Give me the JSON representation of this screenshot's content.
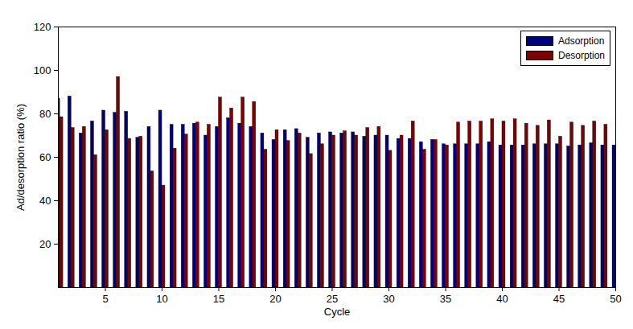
{
  "chart_data": {
    "type": "bar",
    "x_label": "Cycle",
    "y_label": "Ad/desorption ratio (%)",
    "x": [
      1,
      2,
      3,
      4,
      5,
      6,
      7,
      8,
      9,
      10,
      11,
      12,
      13,
      14,
      15,
      16,
      17,
      18,
      19,
      20,
      21,
      22,
      23,
      24,
      25,
      26,
      27,
      28,
      29,
      30,
      31,
      32,
      33,
      34,
      35,
      36,
      37,
      38,
      39,
      40,
      41,
      42,
      43,
      44,
      45,
      46,
      47,
      48,
      49,
      50
    ],
    "series": [
      {
        "name": "Adsorption",
        "color": "#00007f",
        "values": [
          87,
          88,
          71,
          76.5,
          81.5,
          80.5,
          81,
          69,
          74,
          81.5,
          75,
          75,
          75.5,
          70,
          74,
          78,
          75.5,
          74,
          71,
          68,
          72.5,
          73,
          69,
          71,
          71.5,
          71,
          71.5,
          69.5,
          70,
          70,
          68.5,
          68.5,
          67,
          68,
          66,
          66,
          66,
          66,
          67,
          65.5,
          65.5,
          65.5,
          66,
          66,
          66,
          65,
          65.5,
          66.5,
          65.5,
          65.5
        ]
      },
      {
        "name": "Desorption",
        "color": "#7f0000",
        "values": [
          78.5,
          73.5,
          74,
          61,
          72.5,
          97,
          68.5,
          69.5,
          53.5,
          47,
          64,
          70.5,
          76,
          75,
          87.5,
          82.5,
          87.5,
          85.5,
          63.5,
          72.5,
          67.5,
          71,
          61.5,
          66,
          70,
          72,
          70,
          73.5,
          74,
          63,
          70,
          76.5,
          63.5,
          68,
          65.5,
          76,
          76.5,
          76.5,
          77.5,
          76.5,
          77.5,
          75.5,
          74.5,
          77,
          69.5,
          76,
          74.5,
          76.5,
          75,
          null
        ]
      }
    ],
    "xlim": [
      0.85,
      50
    ],
    "xticks": [
      5,
      10,
      15,
      20,
      25,
      30,
      35,
      40,
      45,
      50
    ],
    "ylim": [
      0,
      120
    ],
    "yticks": [
      20,
      40,
      60,
      80,
      100,
      120
    ],
    "grid": false,
    "legend": "northeast"
  }
}
